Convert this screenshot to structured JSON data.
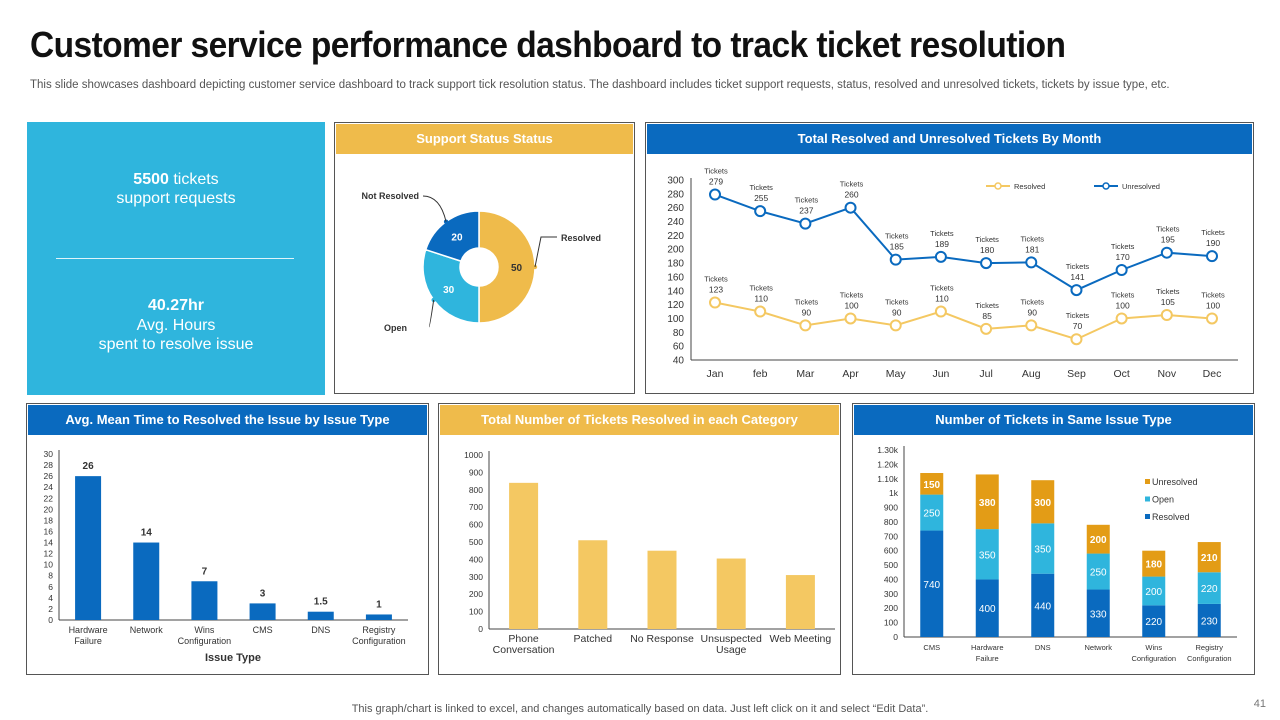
{
  "title": "Customer service performance dashboard to track ticket resolution",
  "subtitle": "This slide showcases dashboard depicting customer service dashboard to track support tick resolution status. The dashboard includes ticket support requests, status, resolved and unresolved tickets, tickets by issue type, etc.",
  "kpi": {
    "tickets_value": "5500",
    "tickets_unit": " tickets",
    "tickets_label": "support requests",
    "hours_value": "40.27hr",
    "hours_label1": "Avg. Hours",
    "hours_label2": "spent to resolve issue"
  },
  "colors": {
    "blue": "#0a6abf",
    "light_blue": "#2fb5dd",
    "gold": "#efbb4b",
    "gold_line": "#f4c862"
  },
  "footer": "This graph/chart is linked to excel,  and changes automatically based on data. Just left click on it and select “Edit Data”.",
  "page_number": "41",
  "chart_data": [
    {
      "id": "support-status",
      "type": "pie",
      "title": "Support Status Status",
      "slices": [
        {
          "label": "Resolved",
          "value": 50,
          "color": "#efbb4b"
        },
        {
          "label": "Open",
          "value": 30,
          "color": "#2fb5dd"
        },
        {
          "label": "Not Resolved",
          "value": 20,
          "color": "#0a6abf"
        }
      ]
    },
    {
      "id": "monthly-tickets",
      "type": "line",
      "title": "Total Resolved and Unresolved Tickets By Month",
      "categories": [
        "Jan",
        "feb",
        "Mar",
        "Apr",
        "May",
        "Jun",
        "Jul",
        "Aug",
        "Sep",
        "Oct",
        "Nov",
        "Dec"
      ],
      "ylim": [
        40,
        300
      ],
      "yticks": [
        40,
        60,
        80,
        100,
        120,
        140,
        160,
        180,
        200,
        220,
        240,
        260,
        280,
        300
      ],
      "point_prefix": "Tickets",
      "series": [
        {
          "name": "Resolved",
          "color": "#f4c862",
          "values": [
            123,
            110,
            90,
            100,
            90,
            110,
            85,
            90,
            70,
            100,
            105,
            100
          ]
        },
        {
          "name": "Unresolved",
          "color": "#0a6abf",
          "values": [
            279,
            255,
            237,
            260,
            185,
            189,
            180,
            181,
            141,
            170,
            195,
            190
          ]
        }
      ]
    },
    {
      "id": "mean-time",
      "type": "bar",
      "title": "Avg. Mean Time to Resolved the Issue by Issue Type",
      "categories": [
        [
          "Hardware",
          "Failure"
        ],
        [
          "Network"
        ],
        [
          "Wins",
          "Configuration"
        ],
        [
          "CMS"
        ],
        [
          "DNS"
        ],
        [
          "Registry",
          "Configuration"
        ]
      ],
      "values": [
        26,
        14,
        7,
        3,
        1.5,
        1
      ],
      "value_labels": [
        "26",
        "14",
        "7",
        "3",
        "1.5",
        "1"
      ],
      "ylim": [
        0,
        30
      ],
      "yticks": [
        0,
        2,
        4,
        6,
        8,
        10,
        12,
        14,
        16,
        18,
        20,
        22,
        24,
        26,
        28,
        30
      ],
      "xlabel": "Issue Type",
      "color": "#0a6abf"
    },
    {
      "id": "resolved-category",
      "type": "bar",
      "title": "Total Number of Tickets Resolved in each Category",
      "categories": [
        [
          "Phone",
          "Conversation"
        ],
        [
          "Patched"
        ],
        [
          "No Response"
        ],
        [
          "Unsuspected",
          "Usage"
        ],
        [
          "Web Meeting"
        ]
      ],
      "values": [
        840,
        510,
        450,
        405,
        310
      ],
      "ylim": [
        0,
        1000
      ],
      "yticks": [
        0,
        100,
        200,
        300,
        400,
        500,
        600,
        700,
        800,
        900,
        1000
      ],
      "ytick_labels": [
        "0",
        "100",
        "200",
        "300",
        "400",
        "500",
        "600",
        "700",
        "800",
        "900",
        "1000"
      ],
      "color": "#f4c862"
    },
    {
      "id": "issue-type-stacked",
      "type": "bar",
      "title": "Number of Tickets in Same Issue Type",
      "categories": [
        [
          "CMS"
        ],
        [
          "Hardware",
          "Failure"
        ],
        [
          "DNS"
        ],
        [
          "Network"
        ],
        [
          "Wins",
          "Configuration"
        ],
        [
          "Registry",
          "Configuration"
        ]
      ],
      "ylim": [
        0,
        1300
      ],
      "yticks": [
        0,
        100,
        200,
        300,
        400,
        500,
        600,
        700,
        800,
        900,
        1000,
        1100,
        1200,
        1300
      ],
      "ytick_labels": [
        "0",
        "100",
        "200",
        "300",
        "400",
        "500",
        "600",
        "700",
        "800",
        "900",
        "1k",
        "1.10k",
        "1.20k",
        "1.30k"
      ],
      "series": [
        {
          "name": "Resolved",
          "color": "#0a6abf",
          "values": [
            740,
            400,
            440,
            330,
            220,
            230
          ]
        },
        {
          "name": "Open",
          "color": "#2fb5dd",
          "values": [
            250,
            350,
            350,
            250,
            200,
            220
          ]
        },
        {
          "name": "Unresolved",
          "color": "#e39c16",
          "values": [
            150,
            380,
            300,
            200,
            180,
            210
          ]
        }
      ]
    }
  ]
}
